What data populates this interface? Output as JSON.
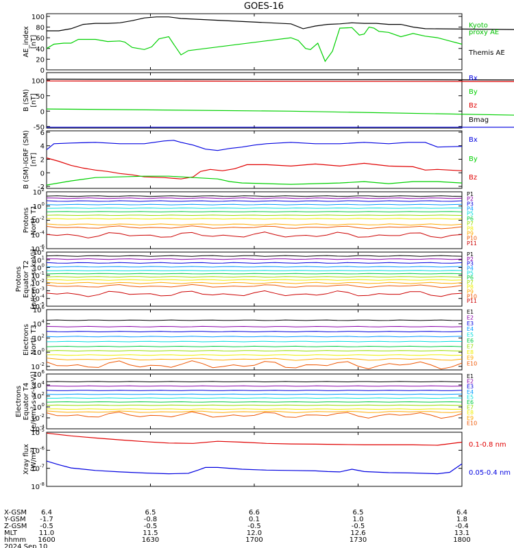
{
  "title": "GOES-16",
  "colors": {
    "black": "#000000",
    "blue": "#0000e0",
    "green": "#00d000",
    "red": "#e00000",
    "kyoto": "#00c000",
    "xray_long": "#e00000",
    "xray_short": "#0000e0",
    "p_channels": [
      "#000000",
      "#8800aa",
      "#0000dd",
      "#0099ff",
      "#00dddd",
      "#00cc44",
      "#99dd00",
      "#eeee00",
      "#ffaa00",
      "#ee5500",
      "#cc0000"
    ]
  },
  "chart_data": [
    {
      "type": "line",
      "id": "ae",
      "ylabel": [
        "AE_index",
        "[nT]"
      ],
      "ylim": [
        0,
        105
      ],
      "ticks": [
        "100",
        "80",
        "60",
        "40",
        "20",
        "0"
      ],
      "tick_values": [
        100,
        80,
        60,
        40,
        20,
        0
      ],
      "legend": [
        {
          "text": "Kyoto",
          "color": "kyoto"
        },
        {
          "text": "proxy AE",
          "color": "kyoto"
        },
        {
          "text": "Themis AE",
          "color": "black"
        }
      ],
      "series": [
        {
          "name": "Themis AE",
          "color": "black",
          "x": [
            1600,
            1605,
            1610,
            1615,
            1620,
            1625,
            1630,
            1635,
            1640,
            1645,
            1650,
            1655,
            1700,
            1705,
            1710,
            1715,
            1720,
            1725,
            1730,
            1735,
            1740,
            1745,
            1750,
            1755,
            1800
          ],
          "y": [
            73,
            73,
            77,
            85,
            87,
            87,
            88,
            92,
            97,
            99,
            99,
            96,
            86,
            77,
            82,
            85,
            86,
            88,
            87,
            87,
            85,
            85,
            80,
            77,
            75
          ]
        },
        {
          "name": "Kyoto proxy AE",
          "color": "green",
          "x": [
            1600,
            1603,
            1607,
            1610,
            1613,
            1620,
            1625,
            1630,
            1632,
            1635,
            1640,
            1643,
            1646,
            1650,
            1652,
            1655,
            1658,
            1700,
            1703,
            1706,
            1708,
            1711,
            1714,
            1717,
            1720,
            1725,
            1728,
            1730,
            1732,
            1734,
            1736,
            1740,
            1745,
            1750,
            1755,
            1760,
            1765,
            1770
          ],
          "y": [
            40,
            48,
            50,
            50,
            57,
            57,
            53,
            54,
            52,
            42,
            38,
            43,
            58,
            62,
            48,
            28,
            36,
            60,
            55,
            40,
            38,
            50,
            16,
            35,
            78,
            79,
            65,
            67,
            80,
            78,
            72,
            70,
            62,
            68,
            63,
            60,
            54,
            48
          ]
        }
      ]
    },
    {
      "type": "line",
      "id": "b",
      "ylabel": [
        "B (SM)",
        "[nT]"
      ],
      "ylim": [
        -55,
        125
      ],
      "ticks": [
        "100",
        "50",
        "0",
        "-50"
      ],
      "tick_values": [
        100,
        50,
        0,
        -50
      ],
      "legend": [
        {
          "text": "Bx",
          "color": "blue"
        },
        {
          "text": "By",
          "color": "green"
        },
        {
          "text": "Bz",
          "color": "red"
        },
        {
          "text": "Bmag",
          "color": "black"
        }
      ],
      "series": [
        {
          "name": "Bmag",
          "color": "black",
          "x": [
            1600,
            1800
          ],
          "y": [
            104,
            101
          ]
        },
        {
          "name": "Bz",
          "color": "red",
          "x": [
            1600,
            1800
          ],
          "y": [
            98,
            96
          ]
        },
        {
          "name": "By",
          "color": "green",
          "x": [
            1600,
            1700,
            1800
          ],
          "y": [
            7,
            0,
            -14
          ]
        },
        {
          "name": "Bx",
          "color": "blue",
          "x": [
            1600,
            1800
          ],
          "y": [
            -52,
            -52
          ]
        }
      ]
    },
    {
      "type": "line",
      "id": "bdiff",
      "ylabel": [
        "B (SM)-IGRF (SM)",
        "[nT]"
      ],
      "ylim": [
        -2.3,
        6.2
      ],
      "ticks": [
        "6",
        "4",
        "2",
        "0",
        "-2"
      ],
      "tick_values": [
        6,
        4,
        2,
        0,
        -2
      ],
      "legend": [
        {
          "text": "Bx",
          "color": "blue"
        },
        {
          "text": "By",
          "color": "green"
        },
        {
          "text": "Bz",
          "color": "red"
        }
      ],
      "series": [
        {
          "name": "Bx",
          "color": "blue",
          "x": [
            1600,
            1603,
            1610,
            1620,
            1630,
            1640,
            1648,
            1652,
            1655,
            1660,
            1665,
            1670,
            1675,
            1680,
            1685,
            1690,
            1700,
            1710,
            1720,
            1730,
            1740,
            1748,
            1755,
            1760,
            1770
          ],
          "y": [
            3.4,
            4.3,
            4.4,
            4.5,
            4.3,
            4.3,
            4.7,
            4.8,
            4.5,
            4.1,
            3.5,
            3.3,
            3.6,
            3.8,
            4.1,
            4.3,
            4.5,
            4.3,
            4.3,
            4.5,
            4.3,
            4.5,
            4.5,
            3.8,
            3.9
          ]
        },
        {
          "name": "Bz",
          "color": "red",
          "x": [
            1600,
            1605,
            1610,
            1615,
            1620,
            1625,
            1630,
            1635,
            1640,
            1648,
            1655,
            1660,
            1663,
            1667,
            1672,
            1677,
            1682,
            1690,
            1700,
            1710,
            1720,
            1730,
            1740,
            1750,
            1755,
            1760,
            1770
          ],
          "y": [
            2.2,
            1.7,
            1.1,
            0.7,
            0.4,
            0.2,
            -0.1,
            -0.3,
            -0.6,
            -0.7,
            -0.9,
            -0.6,
            0.2,
            0.5,
            0.3,
            0.6,
            1.2,
            1.2,
            1.0,
            1.3,
            1.0,
            1.4,
            1.0,
            0.9,
            0.4,
            0.5,
            0.3
          ]
        },
        {
          "name": "By",
          "color": "green",
          "x": [
            1600,
            1605,
            1610,
            1620,
            1630,
            1640,
            1650,
            1660,
            1670,
            1675,
            1680,
            1690,
            1700,
            1710,
            1720,
            1730,
            1740,
            1750,
            1760,
            1770
          ],
          "y": [
            -1.8,
            -1.5,
            -1.2,
            -0.7,
            -0.6,
            -0.5,
            -0.5,
            -0.7,
            -0.9,
            -1.3,
            -1.5,
            -1.6,
            -1.7,
            -1.6,
            -1.5,
            -1.3,
            -1.6,
            -1.3,
            -1.3,
            -1.5
          ]
        }
      ]
    },
    {
      "type": "line",
      "id": "p_north",
      "log": true,
      "ylabel": [
        "Protons",
        "North T1"
      ],
      "ylim": [
        -6,
        2
      ],
      "ticks": [
        {
          "b": "10",
          "e": "2",
          "v": 2
        },
        {
          "b": "10",
          "e": "0",
          "v": 0
        },
        {
          "b": "10",
          "e": "-2",
          "v": -2
        },
        {
          "b": "10",
          "e": "-4",
          "v": -4
        },
        {
          "b": "10",
          "e": "-6",
          "v": -6
        }
      ],
      "labels": [
        "P1",
        "P2",
        "P3",
        "P4",
        "P5",
        "P6",
        "P7",
        "P8",
        "P9",
        "P10",
        "P11"
      ],
      "levels": [
        1.4,
        1.1,
        0.7,
        0.2,
        -0.3,
        -0.8,
        -1.3,
        -1.8,
        -2.6,
        -3.0,
        -4.1
      ],
      "wiggle": [
        0.05,
        0.05,
        0.05,
        0.04,
        0.03,
        0.03,
        0.03,
        0.05,
        0.08,
        0.1,
        0.22
      ]
    },
    {
      "type": "line",
      "id": "p_equator",
      "log": true,
      "ylabel": [
        "Protons",
        "Equator T2",
        "[p/(cm²-s-sr-keV)]"
      ],
      "ylim": [
        -5,
        2
      ],
      "ticks": [
        {
          "b": "10",
          "e": "2",
          "v": 2
        },
        {
          "b": "10",
          "e": "1",
          "v": 1
        },
        {
          "b": "10",
          "e": "0",
          "v": 0
        },
        {
          "b": "10",
          "e": "-1",
          "v": -1
        },
        {
          "b": "10",
          "e": "-2",
          "v": -2
        },
        {
          "b": "10",
          "e": "-3",
          "v": -3
        },
        {
          "b": "10",
          "e": "-4",
          "v": -4
        },
        {
          "b": "10",
          "e": "-5",
          "v": -5
        }
      ],
      "labels": [
        "P1",
        "P2",
        "P3",
        "P4",
        "P5",
        "P6",
        "P7",
        "P8",
        "P9",
        "P10",
        "P11"
      ],
      "levels": [
        1.5,
        1.1,
        0.6,
        0.1,
        -0.4,
        -0.8,
        -1.2,
        -1.6,
        -2.0,
        -2.4,
        -3.4
      ],
      "wiggle": [
        0.05,
        0.05,
        0.05,
        0.04,
        0.03,
        0.03,
        0.04,
        0.05,
        0.08,
        0.1,
        0.2
      ]
    },
    {
      "type": "line",
      "id": "e_north",
      "log": true,
      "ylabel": [
        "Electrons",
        "North T3"
      ],
      "ylim": [
        -2.5,
        6
      ],
      "ticks": [
        {
          "b": "10",
          "e": "6",
          "v": 6
        },
        {
          "b": "10",
          "e": "4",
          "v": 4
        },
        {
          "b": "10",
          "e": "2",
          "v": 2
        },
        {
          "b": "10",
          "e": "0",
          "v": 0
        },
        {
          "b": "10",
          "e": "-2",
          "v": -2
        }
      ],
      "labels": [
        "E1",
        "E2",
        "E3",
        "E4",
        "E5",
        "E6",
        "E7",
        "E8",
        "E9",
        "E10"
      ],
      "levels": [
        4.5,
        3.6,
        2.9,
        2.2,
        1.5,
        0.8,
        0.2,
        -0.4,
        -1.0,
        -1.8
      ],
      "wiggle": [
        0.04,
        0.04,
        0.04,
        0.04,
        0.04,
        0.04,
        0.04,
        0.05,
        0.08,
        0.3
      ]
    },
    {
      "type": "line",
      "id": "e_equator",
      "log": true,
      "ylabel": [
        "Electrons",
        "Equator T4",
        "[e/(cm²-s-sr-keV)]"
      ],
      "ylim": [
        -4,
        6
      ],
      "ticks": [
        {
          "b": "10",
          "e": "6",
          "v": 6
        },
        {
          "b": "10",
          "e": "4",
          "v": 4
        },
        {
          "b": "10",
          "e": "2",
          "v": 2
        },
        {
          "b": "10",
          "e": "0",
          "v": 0
        },
        {
          "b": "10",
          "e": "-2",
          "v": -2
        },
        {
          "b": "10",
          "e": "-4",
          "v": -4
        }
      ],
      "labels": [
        "E1",
        "E2",
        "E3",
        "E4",
        "E5",
        "E6",
        "E7",
        "E8",
        "E9",
        "E10"
      ],
      "levels": [
        4.6,
        3.8,
        3.0,
        2.3,
        1.6,
        0.9,
        0.3,
        -0.4,
        -0.9,
        -1.5
      ],
      "wiggle": [
        0.04,
        0.04,
        0.04,
        0.04,
        0.04,
        0.04,
        0.04,
        0.05,
        0.08,
        0.3
      ]
    },
    {
      "type": "line",
      "id": "xray",
      "log": true,
      "ylabel": [
        "Xray flux",
        "[W/m²]"
      ],
      "ylim": [
        -8,
        -5
      ],
      "ticks": [
        {
          "b": "10",
          "e": "-5",
          "v": -5
        },
        {
          "b": "10",
          "e": "-6",
          "v": -6
        },
        {
          "b": "10",
          "e": "-7",
          "v": -7
        },
        {
          "b": "10",
          "e": "-8",
          "v": -8
        }
      ],
      "legend": [
        {
          "text": "0.1-0.8 nm",
          "color": "red"
        },
        {
          "text": "0.05-0.4 nm",
          "color": "blue"
        }
      ],
      "series": [
        {
          "name": "0.1-0.8 nm",
          "color": "red",
          "x": [
            1600,
            1610,
            1620,
            1630,
            1640,
            1650,
            1660,
            1670,
            1680,
            1690,
            1700,
            1710,
            1720,
            1730,
            1740,
            1750,
            1760,
            1770
          ],
          "y": [
            -5.05,
            -5.2,
            -5.32,
            -5.42,
            -5.52,
            -5.6,
            -5.62,
            -5.5,
            -5.55,
            -5.62,
            -5.65,
            -5.66,
            -5.68,
            -5.7,
            -5.7,
            -5.7,
            -5.72,
            -5.55
          ]
        },
        {
          "name": "0.05-0.4 nm",
          "color": "blue",
          "x": [
            1600,
            1605,
            1610,
            1620,
            1630,
            1640,
            1650,
            1658,
            1662,
            1665,
            1670,
            1680,
            1690,
            1700,
            1710,
            1715,
            1720,
            1725,
            1730,
            1740,
            1750,
            1760,
            1765,
            1770
          ],
          "y": [
            -6.6,
            -6.8,
            -6.98,
            -7.12,
            -7.2,
            -7.26,
            -7.3,
            -7.28,
            -7.1,
            -6.95,
            -6.95,
            -7.05,
            -7.1,
            -7.12,
            -7.14,
            -7.18,
            -7.2,
            -7.05,
            -7.18,
            -7.24,
            -7.26,
            -7.3,
            -7.22,
            -6.75
          ]
        }
      ]
    }
  ],
  "x_axis": {
    "row_labels": [
      "X-GSM",
      "Y-GSM",
      "Z-GSM",
      "MLT",
      "hhmm"
    ],
    "date": "2024 Sep 10",
    "columns": [
      {
        "x": 1600,
        "values": [
          "6.4",
          "-1.7",
          "-0.5",
          "11.0",
          "1600"
        ]
      },
      {
        "x": 1630,
        "values": [
          "6.5",
          "-0.8",
          "-0.5",
          "11.5",
          "1630"
        ]
      },
      {
        "x": 1700,
        "values": [
          "6.6",
          "0.1",
          "-0.5",
          "12.0",
          "1700"
        ]
      },
      {
        "x": 1730,
        "values": [
          "6.5",
          "1.0",
          "-0.5",
          "12.6",
          "1730"
        ]
      },
      {
        "x": 1800,
        "values": [
          "6.4",
          "1.8",
          "-0.4",
          "13.1",
          "1800"
        ]
      }
    ]
  }
}
